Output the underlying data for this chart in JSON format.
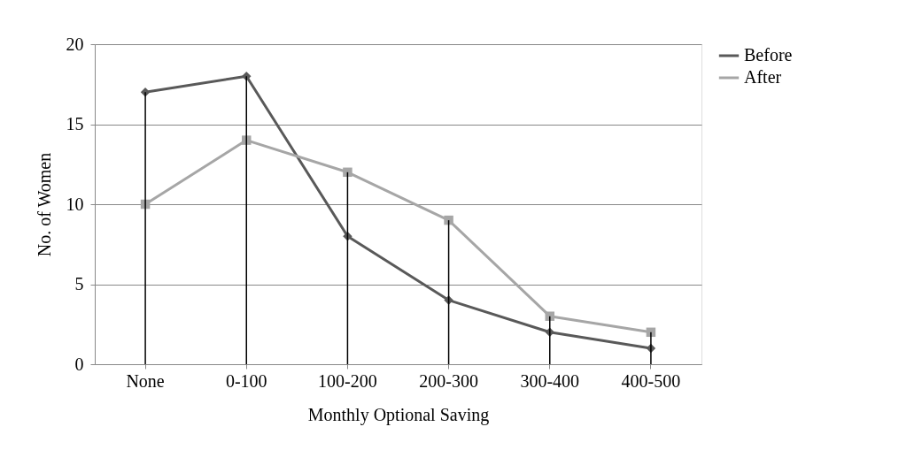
{
  "chart_data": {
    "type": "line",
    "xlabel": "Monthly Optional Saving",
    "ylabel": "No. of Women",
    "categories": [
      "None",
      "0-100",
      "100-200",
      "200-300",
      "300-400",
      "400-500"
    ],
    "series": [
      {
        "type": "bar",
        "color": "#000000",
        "values": [
          17,
          18,
          12,
          9,
          3,
          2
        ]
      },
      {
        "name": "Before",
        "color": "#595959",
        "marker": "diamond",
        "values": [
          17,
          18,
          8,
          4,
          2,
          1
        ]
      },
      {
        "name": "After",
        "color": "#a6a6a6",
        "marker": "square",
        "values": [
          10,
          14,
          12,
          9,
          3,
          2
        ]
      }
    ],
    "ylim": [
      0,
      20
    ],
    "yticks": [
      0,
      5,
      10,
      15,
      20
    ],
    "grid": "y",
    "legend": "right"
  }
}
